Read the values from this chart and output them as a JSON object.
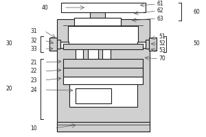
{
  "bg_color": "#ffffff",
  "line_color": "#1a1a1a",
  "label_color": "#1a1a1a",
  "gray_fill": "#d0d0d0",
  "white_fill": "#ffffff",
  "line_width": 0.8,
  "thin_line": 0.5,
  "fs": 5.5
}
